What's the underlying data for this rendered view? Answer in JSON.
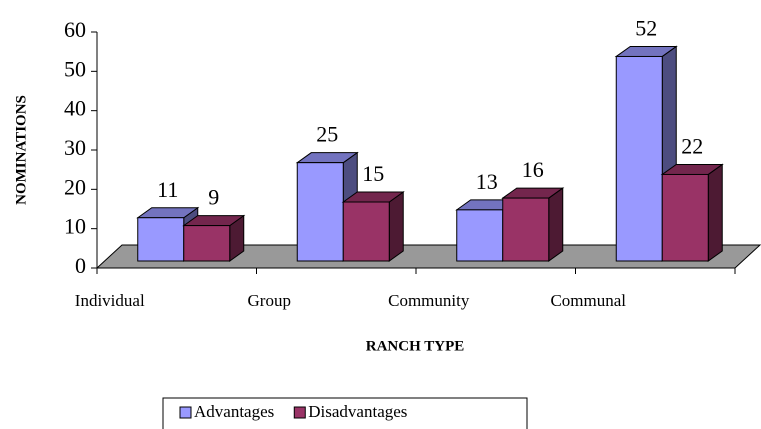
{
  "chart_data": {
    "type": "bar3d",
    "categories": [
      "Individual",
      "Group",
      "Community",
      "Communal"
    ],
    "series": [
      {
        "name": "Advantages",
        "color": "#9999ff",
        "values": [
          11,
          25,
          13,
          52
        ]
      },
      {
        "name": "Disadvantages",
        "color": "#993366",
        "values": [
          9,
          15,
          16,
          22
        ]
      }
    ],
    "x_label": "RANCH TYPE",
    "y_label": "NOMINATIONS",
    "ylim": [
      0,
      60
    ],
    "yticks": [
      0,
      10,
      20,
      30,
      40,
      50,
      60
    ],
    "legend": "bottom"
  }
}
